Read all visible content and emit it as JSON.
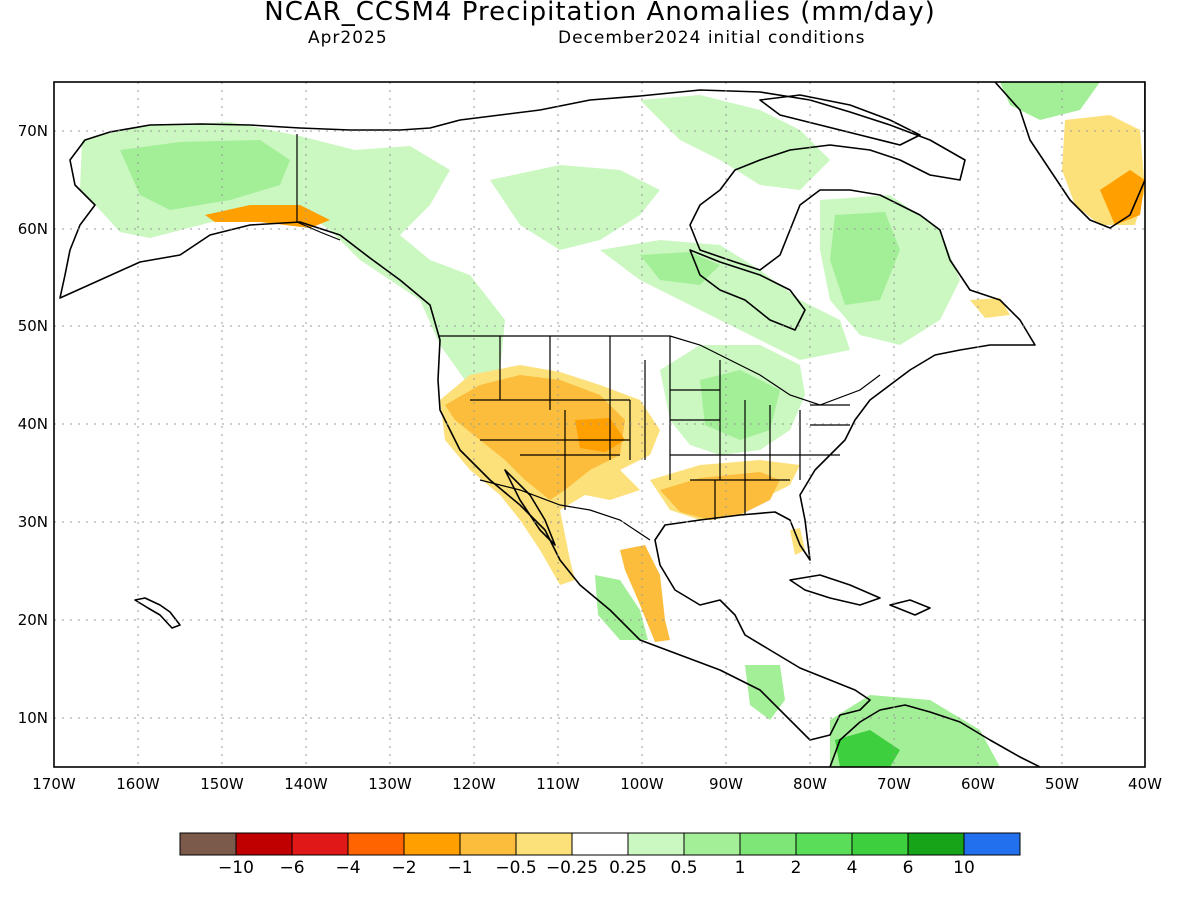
{
  "title": "NCAR_CCSM4 Precipitation Anomalies (mm/day)",
  "subtitle_left": "Apr2025",
  "subtitle_right": "December2024 initial conditions",
  "map": {
    "lon_range": [
      -170,
      -40
    ],
    "lat_range": [
      5,
      75
    ],
    "lon_ticks": [
      {
        "value": -170,
        "label": "170W"
      },
      {
        "value": -160,
        "label": "160W"
      },
      {
        "value": -150,
        "label": "150W"
      },
      {
        "value": -140,
        "label": "140W"
      },
      {
        "value": -130,
        "label": "130W"
      },
      {
        "value": -120,
        "label": "120W"
      },
      {
        "value": -110,
        "label": "110W"
      },
      {
        "value": -100,
        "label": "100W"
      },
      {
        "value": -90,
        "label": "90W"
      },
      {
        "value": -80,
        "label": "80W"
      },
      {
        "value": -70,
        "label": "70W"
      },
      {
        "value": -60,
        "label": "60W"
      },
      {
        "value": -50,
        "label": "50W"
      },
      {
        "value": -40,
        "label": "40W"
      }
    ],
    "lat_ticks": [
      {
        "value": 10,
        "label": "10N"
      },
      {
        "value": 20,
        "label": "20N"
      },
      {
        "value": 30,
        "label": "30N"
      },
      {
        "value": 40,
        "label": "40N"
      },
      {
        "value": 50,
        "label": "50N"
      },
      {
        "value": 60,
        "label": "60N"
      },
      {
        "value": 70,
        "label": "70N"
      }
    ],
    "grid": "dotted"
  },
  "colorbar": {
    "colors": [
      "#7c5a4b",
      "#c00000",
      "#e01818",
      "#ff6400",
      "#ff9f00",
      "#fbbd3b",
      "#fce07a",
      "#ffffff",
      "#cbf7c1",
      "#a3ef97",
      "#7ee676",
      "#5ade5a",
      "#3ecf3e",
      "#18a418",
      "#2270ee"
    ],
    "labels": [
      "−10",
      "−6",
      "−4",
      "−2",
      "−1",
      "−0.5",
      "−0.25",
      "0.25",
      "0.5",
      "1",
      "2",
      "4",
      "6",
      "10"
    ]
  },
  "colors": {
    "land_outline": "#000000",
    "grid": "#9a9a9a"
  }
}
